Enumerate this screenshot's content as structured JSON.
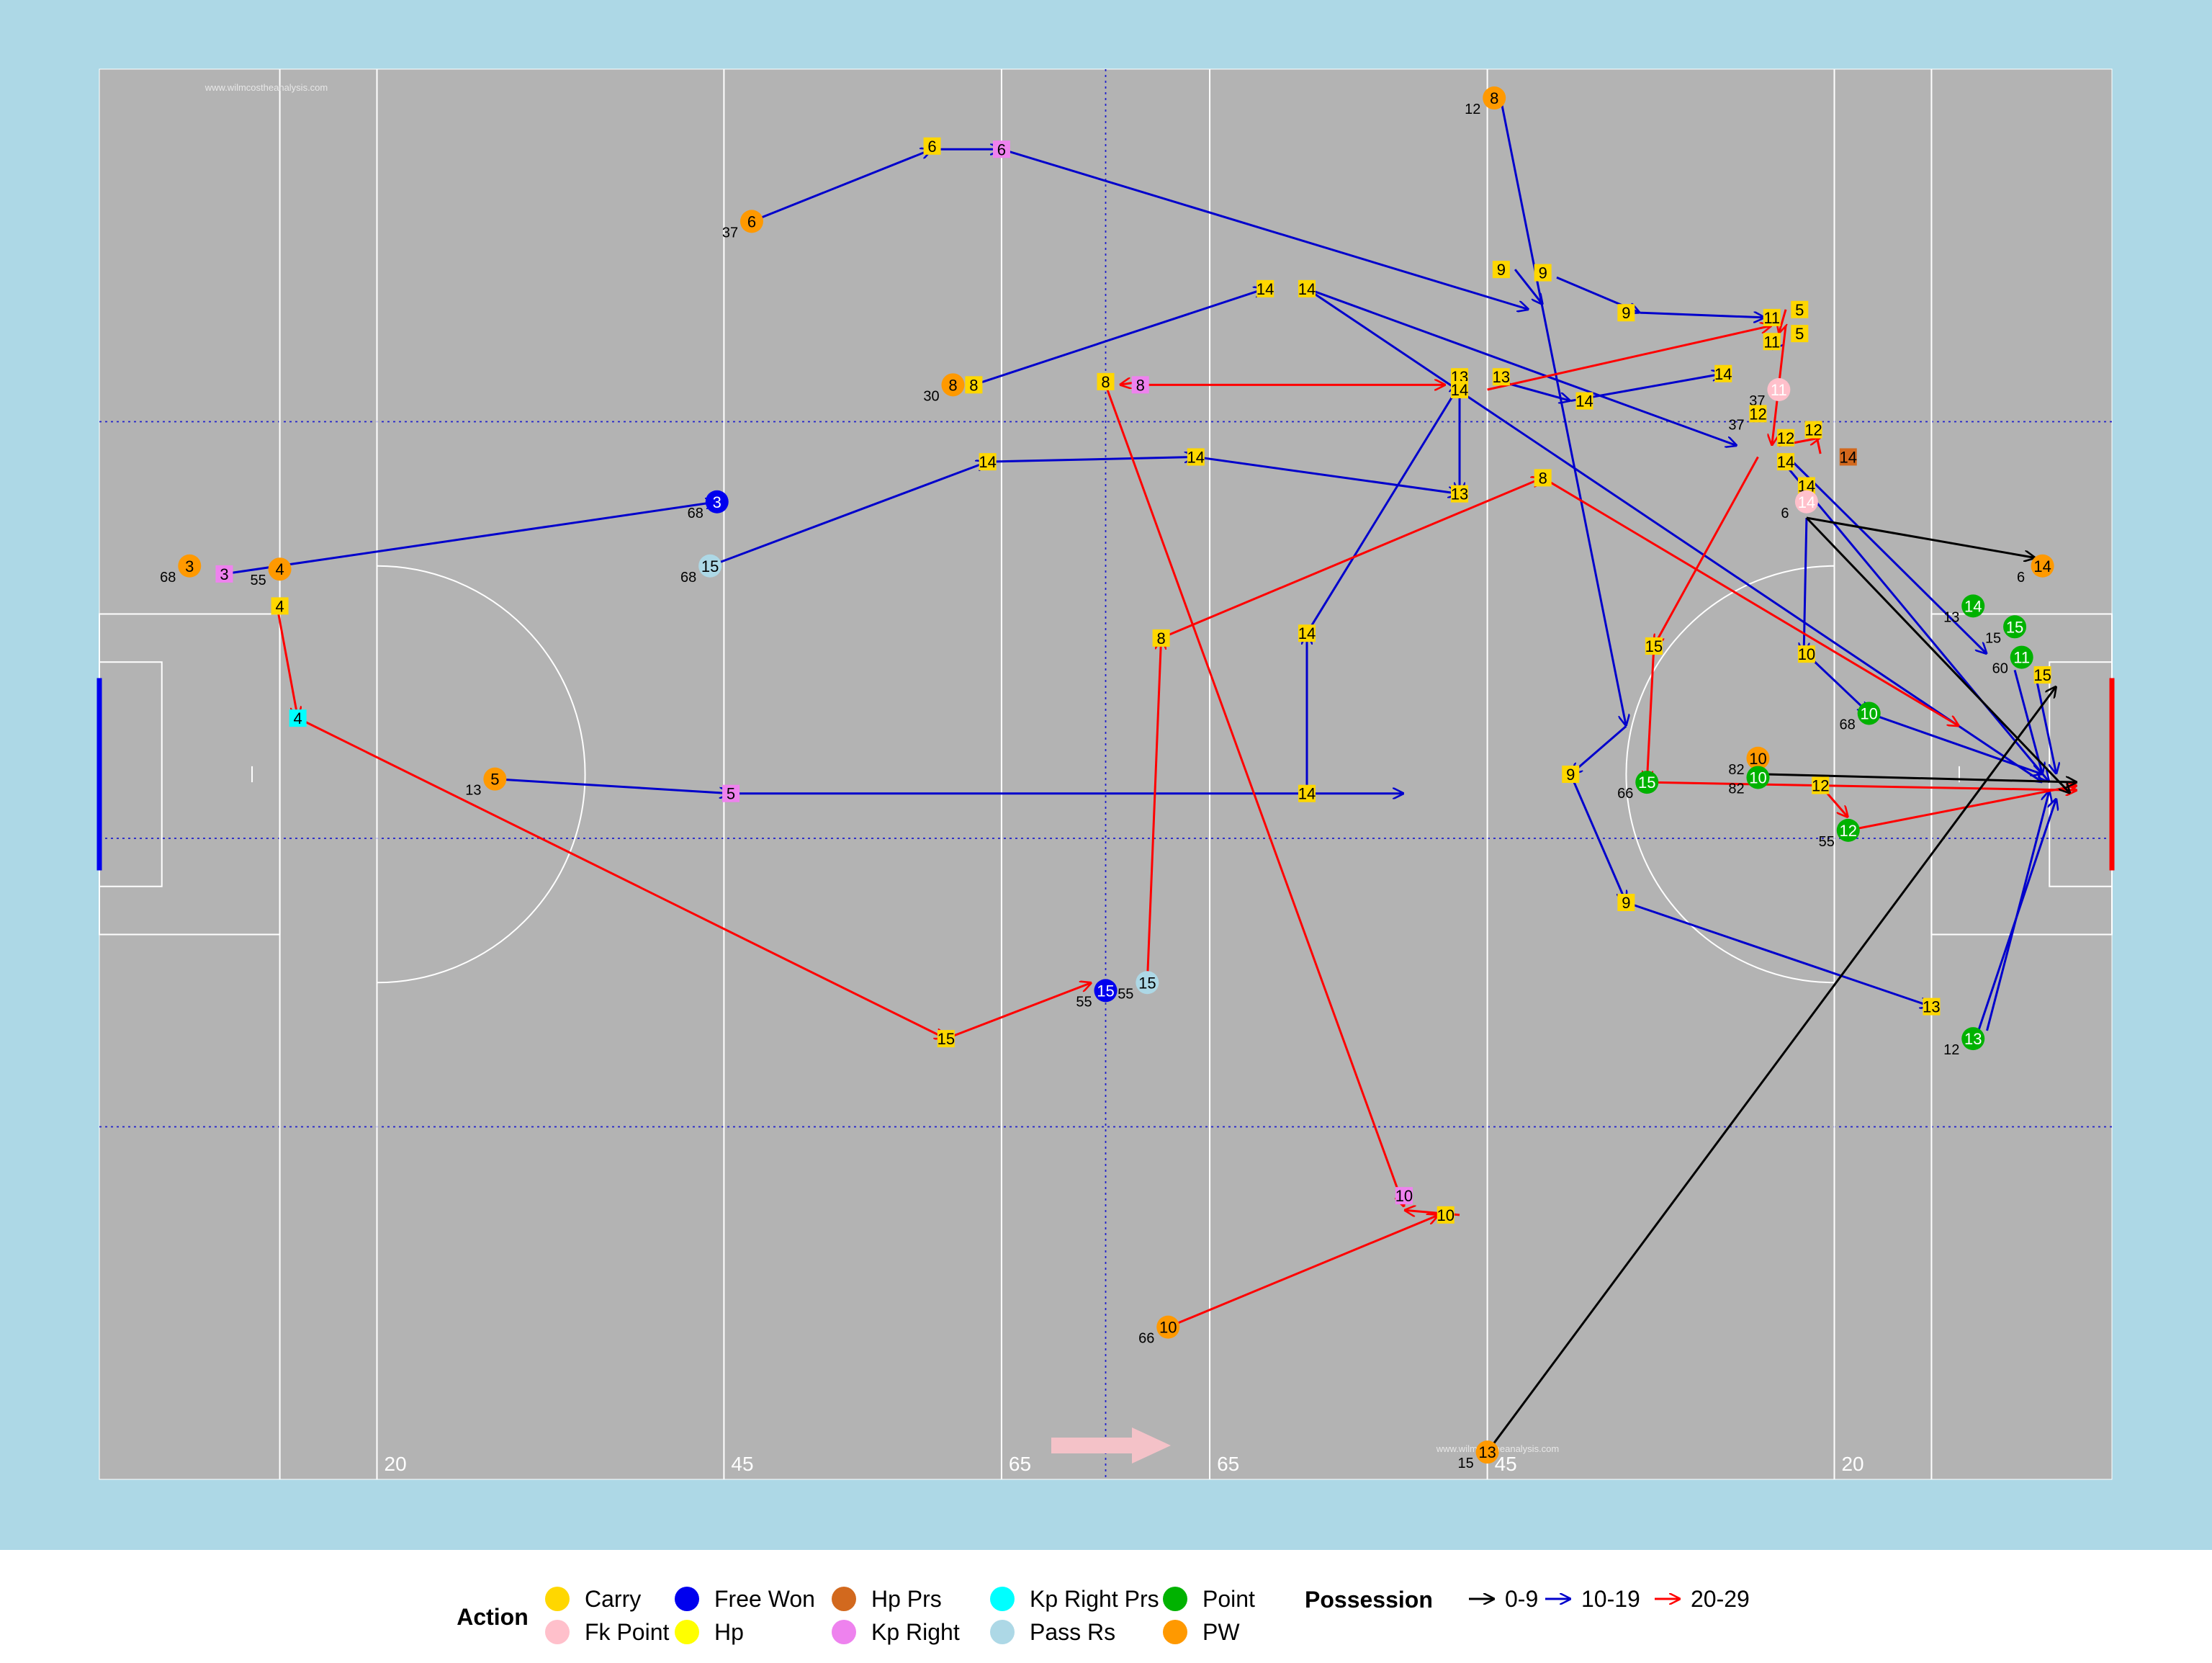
{
  "colors": {
    "panel": "#add8e6",
    "pitch": "#b3b3b3",
    "line": "#ffffff",
    "guide": "#2020cc",
    "watermark": "#e7e7e7",
    "direction_arrow": "#f4c2c8"
  },
  "watermark": "www.wilmcostheanalysis.com",
  "chart_data": {
    "type": "scatter",
    "xlim": [
      0,
      145
    ],
    "ylim": [
      0,
      88
    ],
    "grid": false,
    "legend_position": "bottom",
    "pitch_markings": [
      {
        "x": 13,
        "label": ""
      },
      {
        "x": 20,
        "label": "20"
      },
      {
        "x": 45,
        "label": "45"
      },
      {
        "x": 65,
        "label": "65"
      },
      {
        "x": 72.5,
        "label": ""
      },
      {
        "x": 80,
        "label": "65"
      },
      {
        "x": 100,
        "label": "45"
      },
      {
        "x": 125,
        "label": "20"
      },
      {
        "x": 132,
        "label": ""
      }
    ],
    "legend": {
      "action_title": "Action",
      "possession_title": "Possession",
      "actions": [
        {
          "name": "Carry",
          "color": "#ffd700"
        },
        {
          "name": "Fk Point",
          "color": "#ffc0cb"
        },
        {
          "name": "Free Won",
          "color": "#0000ee"
        },
        {
          "name": "Hp",
          "color": "#ffff00"
        },
        {
          "name": "Hp Prs",
          "color": "#d2691e"
        },
        {
          "name": "Kp Right",
          "color": "#ee82ee"
        },
        {
          "name": "Kp Right Prs",
          "color": "#00ffff"
        },
        {
          "name": "Pass Rs",
          "color": "#add8e6"
        },
        {
          "name": "Point",
          "color": "#00b200"
        },
        {
          "name": "PW",
          "color": "#ff9900"
        }
      ],
      "possessions": [
        {
          "name": "0-9",
          "color": "#000000"
        },
        {
          "name": "10-19",
          "color": "#0000cc"
        },
        {
          "name": "20-29",
          "color": "#ff0000"
        }
      ]
    },
    "arrows": [
      {
        "x1": 47,
        "y1": 78.5,
        "x2": 60,
        "y2": 83,
        "p": "10-19"
      },
      {
        "x1": 60,
        "y1": 83,
        "x2": 65,
        "y2": 83,
        "p": "10-19"
      },
      {
        "x1": 65,
        "y1": 83,
        "x2": 103,
        "y2": 73,
        "p": "10-19"
      },
      {
        "x1": 9,
        "y1": 56.5,
        "x2": 44.5,
        "y2": 61,
        "p": "10-19"
      },
      {
        "x1": 44,
        "y1": 57,
        "x2": 64,
        "y2": 63.5,
        "p": "10-19"
      },
      {
        "x1": 64,
        "y1": 63.5,
        "x2": 79,
        "y2": 63.8,
        "p": "10-19"
      },
      {
        "x1": 79,
        "y1": 63.8,
        "x2": 98,
        "y2": 61.5,
        "p": "10-19"
      },
      {
        "x1": 63,
        "y1": 68.3,
        "x2": 84,
        "y2": 74.3,
        "p": "10-19"
      },
      {
        "x1": 87,
        "y1": 74.3,
        "x2": 118,
        "y2": 64.5,
        "p": "10-19"
      },
      {
        "x1": 87,
        "y1": 74.3,
        "x2": 140,
        "y2": 43.5,
        "p": "10-19"
      },
      {
        "x1": 28.5,
        "y1": 43.7,
        "x2": 45.5,
        "y2": 42.8,
        "p": "10-19"
      },
      {
        "x1": 45.5,
        "y1": 42.8,
        "x2": 94,
        "y2": 42.8,
        "p": "10-19"
      },
      {
        "x1": 87,
        "y1": 42.8,
        "x2": 87,
        "y2": 52.8,
        "p": "10-19"
      },
      {
        "x1": 87,
        "y1": 52.8,
        "x2": 98,
        "y2": 68.3,
        "p": "10-19"
      },
      {
        "x1": 98,
        "y1": 68.8,
        "x2": 98,
        "y2": 61.5,
        "p": "10-19"
      },
      {
        "x1": 101,
        "y1": 68.5,
        "x2": 106,
        "y2": 67.3,
        "p": "10-19"
      },
      {
        "x1": 106,
        "y1": 67.3,
        "x2": 117,
        "y2": 69,
        "p": "10-19"
      },
      {
        "x1": 101,
        "y1": 86,
        "x2": 110,
        "y2": 47,
        "p": "10-19"
      },
      {
        "x1": 110,
        "y1": 47,
        "x2": 106,
        "y2": 44,
        "p": "10-19"
      },
      {
        "x1": 106,
        "y1": 44,
        "x2": 110,
        "y2": 36,
        "p": "10-19"
      },
      {
        "x1": 110,
        "y1": 36,
        "x2": 132,
        "y2": 29.5,
        "p": "10-19"
      },
      {
        "x1": 135,
        "y1": 27,
        "x2": 141,
        "y2": 42.5,
        "p": "10-19"
      },
      {
        "x1": 102,
        "y1": 75.5,
        "x2": 104,
        "y2": 73.3,
        "p": "10-19"
      },
      {
        "x1": 105,
        "y1": 75,
        "x2": 111,
        "y2": 72.8,
        "p": "10-19"
      },
      {
        "x1": 111,
        "y1": 72.8,
        "x2": 120,
        "y2": 72.5,
        "p": "10-19"
      },
      {
        "x1": 121,
        "y1": 71,
        "x2": 120.5,
        "y2": 70.5,
        "p": "10-19"
      },
      {
        "x1": 121,
        "y1": 63.8,
        "x2": 140.5,
        "y2": 43.5,
        "p": "10-19"
      },
      {
        "x1": 123,
        "y1": 60,
        "x2": 122.8,
        "y2": 51.5,
        "p": "10-19"
      },
      {
        "x1": 123,
        "y1": 51.5,
        "x2": 127.5,
        "y2": 47.8,
        "p": "10-19"
      },
      {
        "x1": 127.5,
        "y1": 47.8,
        "x2": 140,
        "y2": 44,
        "p": "10-19"
      },
      {
        "x1": 122,
        "y1": 63.5,
        "x2": 136,
        "y2": 51.5,
        "p": "10-19"
      },
      {
        "x1": 138,
        "y1": 50.5,
        "x2": 140,
        "y2": 44,
        "p": "10-19"
      },
      {
        "x1": 139.5,
        "y1": 50.2,
        "x2": 141,
        "y2": 44,
        "p": "10-19"
      },
      {
        "x1": 136,
        "y1": 28,
        "x2": 140.5,
        "y2": 43,
        "p": "10-19"
      },
      {
        "x1": 12.8,
        "y1": 54.5,
        "x2": 14.3,
        "y2": 47.5,
        "p": "20-29"
      },
      {
        "x1": 14.3,
        "y1": 47.5,
        "x2": 61,
        "y2": 27.5,
        "p": "20-29"
      },
      {
        "x1": 61,
        "y1": 27.5,
        "x2": 71.5,
        "y2": 31,
        "p": "20-29"
      },
      {
        "x1": 75.5,
        "y1": 31,
        "x2": 76.5,
        "y2": 52.5,
        "p": "20-29"
      },
      {
        "x1": 76.5,
        "y1": 52.5,
        "x2": 104,
        "y2": 62.5,
        "p": "20-29"
      },
      {
        "x1": 104,
        "y1": 62.5,
        "x2": 134,
        "y2": 47,
        "p": "20-29"
      },
      {
        "x1": 75,
        "y1": 68.5,
        "x2": 73.5,
        "y2": 68.3,
        "p": "20-29"
      },
      {
        "x1": 75,
        "y1": 68.3,
        "x2": 97,
        "y2": 68.3,
        "p": "20-29"
      },
      {
        "x1": 72.5,
        "y1": 68.3,
        "x2": 94,
        "y2": 17,
        "p": "20-29"
      },
      {
        "x1": 98,
        "y1": 16.5,
        "x2": 94,
        "y2": 16.8,
        "p": "20-29"
      },
      {
        "x1": 77,
        "y1": 9.5,
        "x2": 96.5,
        "y2": 16.5,
        "p": "20-29"
      },
      {
        "x1": 100,
        "y1": 68,
        "x2": 120.5,
        "y2": 72,
        "p": "20-29"
      },
      {
        "x1": 121.5,
        "y1": 72,
        "x2": 120.5,
        "y2": 64.5,
        "p": "20-29"
      },
      {
        "x1": 121.5,
        "y1": 73,
        "x2": 121,
        "y2": 71.5,
        "p": "20-29"
      },
      {
        "x1": 121,
        "y1": 64.5,
        "x2": 124,
        "y2": 65,
        "p": "20-29"
      },
      {
        "x1": 124,
        "y1": 64,
        "x2": 123.5,
        "y2": 66,
        "p": "20-29"
      },
      {
        "x1": 119.5,
        "y1": 63.8,
        "x2": 112,
        "y2": 52,
        "p": "20-29"
      },
      {
        "x1": 112,
        "y1": 52,
        "x2": 111.5,
        "y2": 43.5,
        "p": "20-29"
      },
      {
        "x1": 111.5,
        "y1": 43.5,
        "x2": 142.5,
        "y2": 43,
        "p": "20-29"
      },
      {
        "x1": 124,
        "y1": 43.3,
        "x2": 126,
        "y2": 41.3,
        "p": "20-29"
      },
      {
        "x1": 126,
        "y1": 40.5,
        "x2": 142.5,
        "y2": 43.3,
        "p": "20-29"
      },
      {
        "x1": 120,
        "y1": 44,
        "x2": 142.5,
        "y2": 43.5,
        "p": "0-9"
      },
      {
        "x1": 123,
        "y1": 60,
        "x2": 142,
        "y2": 42.8,
        "p": "0-9"
      },
      {
        "x1": 123,
        "y1": 60,
        "x2": 139.5,
        "y2": 57.5,
        "p": "0-9"
      },
      {
        "x1": 100,
        "y1": 1.7,
        "x2": 141,
        "y2": 49.5,
        "p": "0-9"
      }
    ],
    "points": [
      {
        "x": 47,
        "y": 78.5,
        "action": "PW",
        "label": "6",
        "note": "37"
      },
      {
        "x": 60,
        "y": 83.2,
        "action": "Carry",
        "label": "6"
      },
      {
        "x": 65,
        "y": 83,
        "action": "Kp Right",
        "label": "6"
      },
      {
        "x": 6.5,
        "y": 57,
        "action": "PW",
        "label": "3",
        "note": "68"
      },
      {
        "x": 9,
        "y": 56.5,
        "action": "Kp Right",
        "label": "3"
      },
      {
        "x": 13,
        "y": 56.8,
        "action": "PW",
        "label": "4",
        "note": "55"
      },
      {
        "x": 13,
        "y": 54.5,
        "action": "Carry",
        "label": "4"
      },
      {
        "x": 14.3,
        "y": 47.5,
        "action": "Kp Right Prs",
        "label": "4"
      },
      {
        "x": 44.5,
        "y": 61,
        "action": "Free Won",
        "label": "3",
        "note": "68"
      },
      {
        "x": 44,
        "y": 57,
        "action": "Pass Rs",
        "label": "15",
        "note": "68"
      },
      {
        "x": 28.5,
        "y": 43.7,
        "action": "PW",
        "label": "5",
        "note": "13"
      },
      {
        "x": 45.5,
        "y": 42.8,
        "action": "Kp Right",
        "label": "5"
      },
      {
        "x": 61,
        "y": 27.5,
        "action": "Carry",
        "label": "15"
      },
      {
        "x": 72.5,
        "y": 30.5,
        "action": "Free Won",
        "label": "15",
        "note": "55"
      },
      {
        "x": 75.5,
        "y": 31,
        "action": "Pass Rs",
        "label": "15",
        "note": "55"
      },
      {
        "x": 76.5,
        "y": 52.5,
        "action": "Carry",
        "label": "8"
      },
      {
        "x": 61.5,
        "y": 68.3,
        "action": "PW",
        "label": "8",
        "note": "30"
      },
      {
        "x": 63,
        "y": 68.3,
        "action": "Carry",
        "label": "8"
      },
      {
        "x": 72.5,
        "y": 68.5,
        "action": "Carry",
        "label": "8"
      },
      {
        "x": 75,
        "y": 68.3,
        "action": "Kp Right",
        "label": "8"
      },
      {
        "x": 64,
        "y": 63.5,
        "action": "Carry",
        "label": "14"
      },
      {
        "x": 79,
        "y": 63.8,
        "action": "Carry",
        "label": "14"
      },
      {
        "x": 84,
        "y": 74.3,
        "action": "Carry",
        "label": "14"
      },
      {
        "x": 87,
        "y": 74.3,
        "action": "Carry",
        "label": "14"
      },
      {
        "x": 87,
        "y": 52.8,
        "action": "Carry",
        "label": "14"
      },
      {
        "x": 87,
        "y": 42.8,
        "action": "Carry",
        "label": "14"
      },
      {
        "x": 98,
        "y": 68.8,
        "action": "Carry",
        "label": "13"
      },
      {
        "x": 101,
        "y": 68.8,
        "action": "Carry",
        "label": "13"
      },
      {
        "x": 98,
        "y": 61.5,
        "action": "Carry",
        "label": "13"
      },
      {
        "x": 98,
        "y": 68,
        "action": "Carry",
        "label": "14"
      },
      {
        "x": 104,
        "y": 62.5,
        "action": "Carry",
        "label": "8"
      },
      {
        "x": 100.5,
        "y": 86.2,
        "action": "PW",
        "label": "8",
        "note": "12"
      },
      {
        "x": 101,
        "y": 75.5,
        "action": "Carry",
        "label": "9"
      },
      {
        "x": 104,
        "y": 75.3,
        "action": "Carry",
        "label": "9"
      },
      {
        "x": 110,
        "y": 72.8,
        "action": "Carry",
        "label": "9"
      },
      {
        "x": 106,
        "y": 44,
        "action": "Carry",
        "label": "9"
      },
      {
        "x": 110,
        "y": 36,
        "action": "Carry",
        "label": "9"
      },
      {
        "x": 107,
        "y": 67.3,
        "action": "Carry",
        "label": "14"
      },
      {
        "x": 117,
        "y": 69,
        "action": "Carry",
        "label": "14"
      },
      {
        "x": 120.5,
        "y": 72.5,
        "action": "Carry",
        "label": "11"
      },
      {
        "x": 120.5,
        "y": 71,
        "action": "Carry",
        "label": "11"
      },
      {
        "x": 122.5,
        "y": 73,
        "action": "Carry",
        "label": "5"
      },
      {
        "x": 122.5,
        "y": 71.5,
        "action": "Carry",
        "label": "5"
      },
      {
        "x": 121,
        "y": 68,
        "action": "Fk Point",
        "label": "11",
        "note": "37"
      },
      {
        "x": 119.5,
        "y": 66.5,
        "action": "Carry",
        "label": "12",
        "note": "37"
      },
      {
        "x": 121.5,
        "y": 65,
        "action": "Carry",
        "label": "12"
      },
      {
        "x": 123.5,
        "y": 65.5,
        "action": "Carry",
        "label": "12"
      },
      {
        "x": 126,
        "y": 63.8,
        "action": "Hp Prs",
        "label": "14"
      },
      {
        "x": 121.5,
        "y": 63.5,
        "action": "Carry",
        "label": "14"
      },
      {
        "x": 123,
        "y": 62,
        "action": "Carry",
        "label": "14"
      },
      {
        "x": 123,
        "y": 61,
        "action": "Fk Point",
        "label": "14",
        "note": "6"
      },
      {
        "x": 140,
        "y": 57,
        "action": "PW",
        "label": "14",
        "note": "6"
      },
      {
        "x": 112,
        "y": 52,
        "action": "Carry",
        "label": "15"
      },
      {
        "x": 123,
        "y": 51.5,
        "action": "Carry",
        "label": "10"
      },
      {
        "x": 127.5,
        "y": 47.8,
        "action": "Point",
        "label": "10",
        "note": "68"
      },
      {
        "x": 119.5,
        "y": 45,
        "action": "PW",
        "label": "10",
        "note": "82"
      },
      {
        "x": 119.5,
        "y": 43.8,
        "action": "Point",
        "label": "10",
        "note": "82"
      },
      {
        "x": 111.5,
        "y": 43.5,
        "action": "Point",
        "label": "15",
        "note": "66"
      },
      {
        "x": 124,
        "y": 43.3,
        "action": "Carry",
        "label": "12"
      },
      {
        "x": 126,
        "y": 40.5,
        "action": "Point",
        "label": "12",
        "note": "55"
      },
      {
        "x": 135,
        "y": 54.5,
        "action": "Point",
        "label": "14",
        "note": "13"
      },
      {
        "x": 138,
        "y": 53.2,
        "action": "Point",
        "label": "15",
        "note": "15"
      },
      {
        "x": 138.5,
        "y": 51.3,
        "action": "Point",
        "label": "11",
        "note": "60"
      },
      {
        "x": 140,
        "y": 50.2,
        "action": "Carry",
        "label": "15"
      },
      {
        "x": 132,
        "y": 29.5,
        "action": "Carry",
        "label": "13"
      },
      {
        "x": 135,
        "y": 27.5,
        "action": "Point",
        "label": "13",
        "note": "12"
      },
      {
        "x": 94,
        "y": 17.7,
        "action": "Kp Right",
        "label": "10"
      },
      {
        "x": 97,
        "y": 16.5,
        "action": "Carry",
        "label": "10"
      },
      {
        "x": 77,
        "y": 9.5,
        "action": "PW",
        "label": "10",
        "note": "66"
      },
      {
        "x": 100,
        "y": 1.7,
        "action": "PW",
        "label": "13",
        "note": "15"
      }
    ]
  }
}
